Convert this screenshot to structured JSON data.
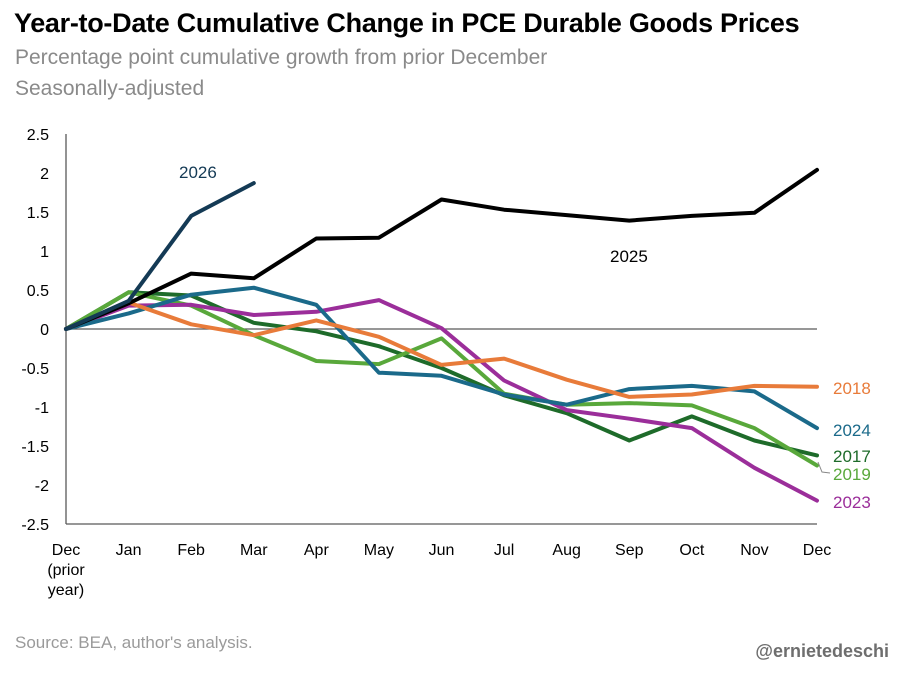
{
  "header": {
    "title": "Year-to-Date Cumulative Change in PCE Durable Goods Prices",
    "subtitle_line1": "Percentage point cumulative growth from prior December",
    "subtitle_line2": "Seasonally-adjusted"
  },
  "footer": {
    "source": "Source: BEA, author's analysis.",
    "handle": "@ernietedeschi"
  },
  "chart_data": {
    "type": "line",
    "title": "Year-to-Date Cumulative Change in PCE Durable Goods Prices",
    "subtitle": "Percentage point cumulative growth from prior December",
    "xlabel": "",
    "ylabel": "",
    "x": [
      "Dec (prior year)",
      "Jan",
      "Feb",
      "Mar",
      "Apr",
      "May",
      "Jun",
      "Jul",
      "Aug",
      "Sep",
      "Oct",
      "Nov",
      "Dec"
    ],
    "x_tick_labels": [
      [
        "Dec",
        "(prior",
        "year)"
      ],
      [
        "Jan"
      ],
      [
        "Feb"
      ],
      [
        "Mar"
      ],
      [
        "Apr"
      ],
      [
        "May"
      ],
      [
        "Jun"
      ],
      [
        "Jul"
      ],
      [
        "Aug"
      ],
      [
        "Sep"
      ],
      [
        "Oct"
      ],
      [
        "Nov"
      ],
      [
        "Dec"
      ]
    ],
    "y_ticks": [
      "2.5",
      "2",
      "1.5",
      "1",
      "0.5",
      "0",
      "-0.5",
      "-1",
      "-1.5",
      "-2",
      "-2.5"
    ],
    "ylim": [
      -2.5,
      2.5
    ],
    "grid": false,
    "zero_line": true,
    "legend": "direct labels",
    "series": [
      {
        "name": "2017",
        "color": "#1e6b2a",
        "values": [
          0,
          0.47,
          0.43,
          0.08,
          -0.03,
          -0.22,
          -0.5,
          -0.85,
          -1.08,
          -1.43,
          -1.12,
          -1.43,
          -1.62
        ]
      },
      {
        "name": "2019",
        "color": "#59a83b",
        "values": [
          0,
          0.47,
          0.3,
          -0.08,
          -0.41,
          -0.45,
          -0.12,
          -0.83,
          -0.97,
          -0.95,
          -0.98,
          -1.27,
          -1.75
        ]
      },
      {
        "name": "2023",
        "color": "#9b2e9a",
        "values": [
          0,
          0.3,
          0.31,
          0.18,
          0.22,
          0.37,
          0.01,
          -0.66,
          -1.04,
          -1.15,
          -1.27,
          -1.78,
          -2.2
        ]
      },
      {
        "name": "2024",
        "color": "#1b6a8a",
        "values": [
          0,
          0.2,
          0.44,
          0.53,
          0.31,
          -0.56,
          -0.6,
          -0.84,
          -0.97,
          -0.77,
          -0.73,
          -0.8,
          -1.27
        ]
      },
      {
        "name": "2018",
        "color": "#e87b3a",
        "values": [
          0,
          0.34,
          0.06,
          -0.08,
          0.11,
          -0.1,
          -0.46,
          -0.38,
          -0.65,
          -0.87,
          -0.84,
          -0.73,
          -0.74
        ]
      },
      {
        "name": "2025",
        "color": "#000000",
        "values": [
          0,
          0.33,
          0.71,
          0.65,
          1.16,
          1.17,
          1.66,
          1.53,
          1.46,
          1.39,
          1.45,
          1.49,
          2.04
        ]
      },
      {
        "name": "2026",
        "color": "#143a55",
        "values": [
          0,
          0.36,
          1.45,
          1.87,
          null,
          null,
          null,
          null,
          null,
          null,
          null,
          null,
          null
        ]
      }
    ]
  },
  "label_style": {
    "2017": {
      "color": "#1e6b2a"
    },
    "2018": {
      "color": "#e87b3a"
    },
    "2019": {
      "color": "#59a83b"
    },
    "2023": {
      "color": "#9b2e9a"
    },
    "2024": {
      "color": "#1b6a8a"
    },
    "2025": {
      "color": "#000000"
    },
    "2026": {
      "color": "#143a55"
    },
    "axis_color": "#595959"
  }
}
